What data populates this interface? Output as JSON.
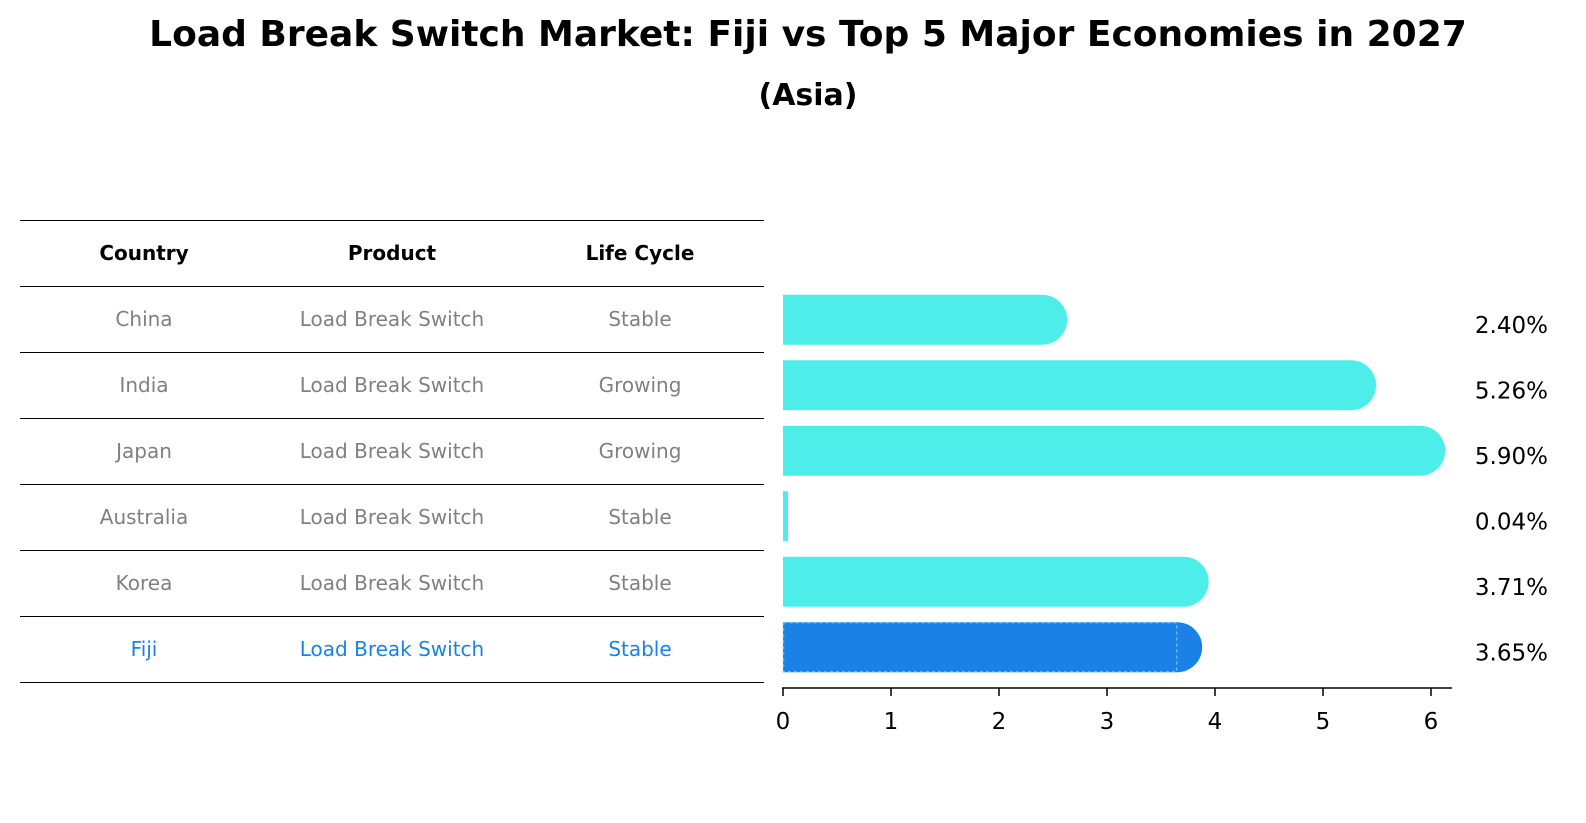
{
  "title": "Load Break Switch Market: Fiji vs Top 5 Major Economies in 2027",
  "subtitle": "(Asia)",
  "table": {
    "headers": [
      "Country",
      "Product",
      "Life Cycle"
    ],
    "rows": [
      [
        "China",
        "Load Break Switch",
        "Stable"
      ],
      [
        "India",
        "Load Break Switch",
        "Growing"
      ],
      [
        "Japan",
        "Load Break Switch",
        "Growing"
      ],
      [
        "Australia",
        "Load Break Switch",
        "Stable"
      ],
      [
        "Korea",
        "Load Break Switch",
        "Stable"
      ],
      [
        "Fiji",
        "Load Break Switch",
        "Stable"
      ]
    ],
    "highlight_row": 5,
    "highlight_color": "#1a82e6",
    "text_color": "#808080"
  },
  "chart_data": {
    "type": "bar",
    "orientation": "horizontal",
    "categories": [
      "China",
      "India",
      "Japan",
      "Australia",
      "Korea",
      "Fiji"
    ],
    "values": [
      2.4,
      5.26,
      5.9,
      0.04,
      3.71,
      3.65
    ],
    "value_labels": [
      "2.40%",
      "5.26%",
      "5.90%",
      "0.04%",
      "3.71%",
      "3.65%"
    ],
    "xlim": [
      0,
      6.2
    ],
    "xticks": [
      0,
      1,
      2,
      3,
      4,
      5,
      6
    ],
    "grid": false,
    "bar_color": "#4deeea",
    "highlight_color": "#1a82e6",
    "highlight_index": 5
  }
}
